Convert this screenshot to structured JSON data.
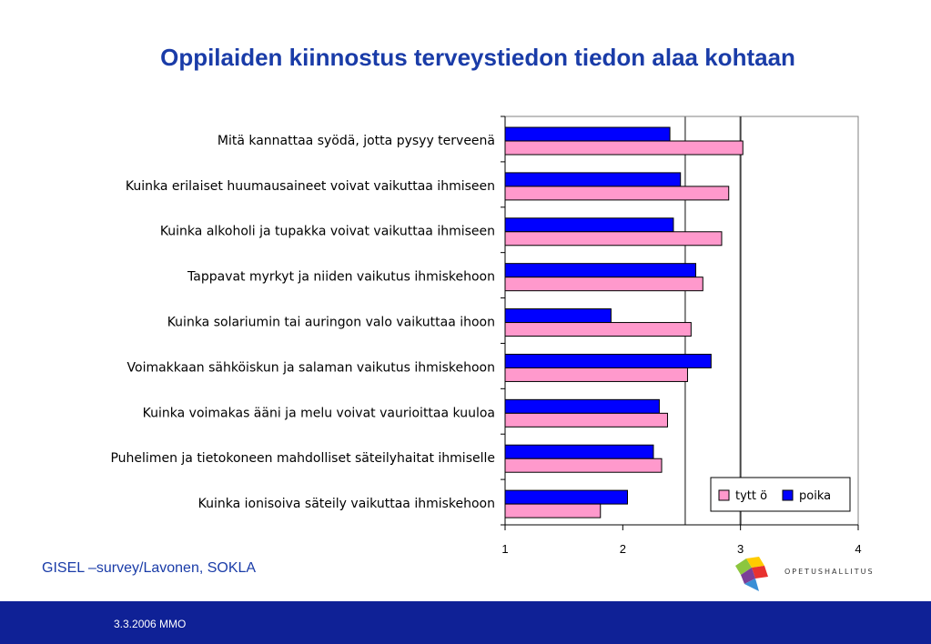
{
  "title": "Oppilaiden kiinnostus terveystiedon tiedon alaa kohtaan",
  "source": "GISEL –survey/Lavonen, SOKLA",
  "footer_date": "3.3.2006 MMO",
  "logo_text": "OPETUSHALLITUS",
  "colors": {
    "title": "#1a3ca8",
    "footer": "#0f2196",
    "tytto": "#ff99cc",
    "poika": "#0000ff"
  },
  "chart_data": {
    "type": "bar",
    "orientation": "horizontal",
    "title": "",
    "xlabel": "",
    "ylabel": "",
    "xlim": [
      1,
      4
    ],
    "xticks": [
      1,
      2,
      3,
      4
    ],
    "grid": false,
    "reference_lines": [
      2.53,
      3.0
    ],
    "legend_position": "bottom-right",
    "categories": [
      "Mitä kannattaa syödä, jotta pysyy terveenä",
      "Kuinka erilaiset huumausaineet voivat vaikuttaa ihmiseen",
      "Kuinka alkoholi ja tupakka voivat vaikuttaa ihmiseen",
      "Tappavat myrkyt ja niiden vaikutus ihmiskehoon",
      "Kuinka solariumin tai auringon valo vaikuttaa ihoon",
      "Voimakkaan sähköiskun ja salaman vaikutus ihmiskehoon",
      "Kuinka voimakas ääni ja melu voivat vaurioittaa kuuloa",
      "Puhelimen ja tietokoneen mahdolliset säteilyhaitat ihmiselle",
      "Kuinka ionisoiva säteily vaikuttaa ihmiskehoon"
    ],
    "series": [
      {
        "name": "tyttö",
        "color": "#ff99cc",
        "values": [
          3.02,
          2.9,
          2.84,
          2.68,
          2.58,
          2.55,
          2.38,
          2.33,
          1.81
        ]
      },
      {
        "name": "poika",
        "color": "#0000ff",
        "values": [
          2.4,
          2.49,
          2.43,
          2.62,
          1.9,
          2.75,
          2.31,
          2.26,
          2.04
        ]
      }
    ],
    "legend_labels": [
      "tytt ö",
      "poika"
    ]
  }
}
